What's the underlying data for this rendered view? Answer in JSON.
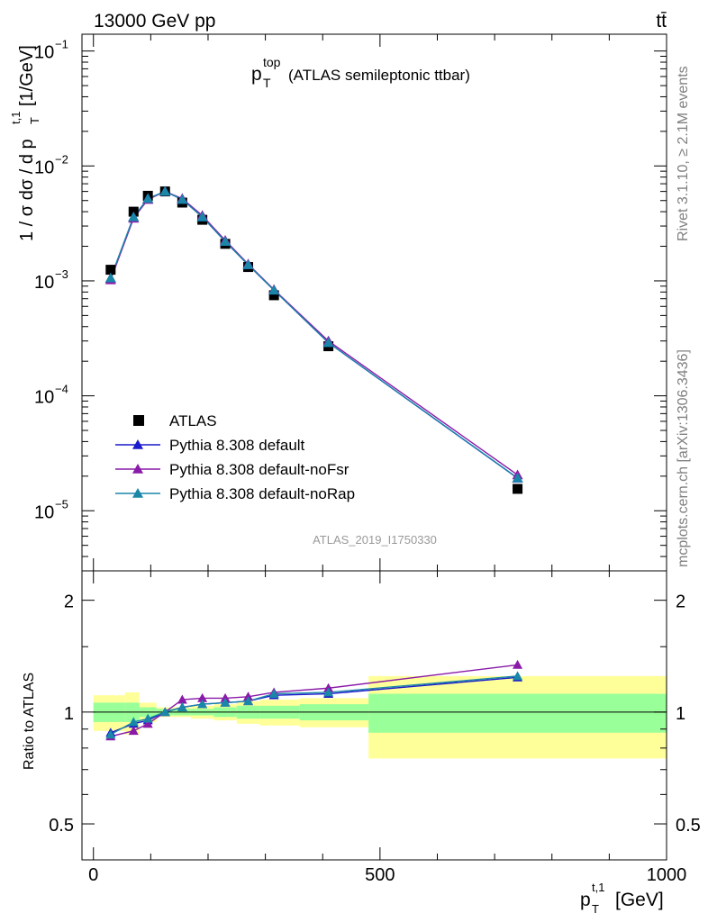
{
  "header": {
    "left": "13000 GeV pp",
    "right": "tt̄"
  },
  "side_labels": {
    "rivet": "Rivet 3.1.10, ≥ 2.1M events",
    "mcplots": "mcplots.cern.ch [arXiv:1306.3436]"
  },
  "analysis_id": "ATLAS_2019_I1750330",
  "chart_data": [
    {
      "type": "scatter",
      "panel": "main",
      "title_main": "p",
      "title_sup": "top",
      "title_sub": "T",
      "title_rest": "(ATLAS semileptonic ttbar)",
      "ylabel": "1 / σ dσ / d p",
      "ylabel_sup": "t,1",
      "ylabel_sub": "T",
      "ylabel_unit": "[1/GeV]",
      "yscale": "log",
      "ylim": [
        3e-06,
        0.14
      ],
      "xlim": [
        -20,
        1000
      ],
      "ytick_labels": [
        "10",
        "10",
        "10",
        "10",
        "10"
      ],
      "ytick_exps": [
        "−5",
        "−4",
        "−3",
        "−2",
        "−1"
      ],
      "ytick_values": [
        1e-05,
        0.0001,
        0.001,
        0.01,
        0.1
      ],
      "legend_position": "lower-left",
      "series": [
        {
          "name": "ATLAS",
          "marker": "square",
          "color": "#000000",
          "x": [
            30,
            70,
            95,
            125,
            155,
            190,
            230,
            270,
            315,
            410,
            740
          ],
          "y": [
            0.00125,
            0.004,
            0.0055,
            0.006,
            0.0048,
            0.0034,
            0.0021,
            0.00132,
            0.00075,
            0.00027,
            1.55e-05
          ]
        },
        {
          "name": "Pythia 8.308 default",
          "marker": "triangle",
          "color": "#1a1acc",
          "x": [
            30,
            70,
            95,
            125,
            155,
            190,
            230,
            270,
            315,
            410,
            740
          ],
          "y": [
            0.00105,
            0.0036,
            0.0052,
            0.006,
            0.0051,
            0.0036,
            0.0022,
            0.00138,
            0.00083,
            0.00029,
            1.92e-05
          ]
        },
        {
          "name": "Pythia 8.308 default-noFsr",
          "marker": "triangle",
          "color": "#8a1aa8",
          "x": [
            30,
            70,
            95,
            125,
            155,
            190,
            230,
            270,
            315,
            410,
            740
          ],
          "y": [
            0.00102,
            0.0035,
            0.0051,
            0.006,
            0.0052,
            0.0037,
            0.00225,
            0.0014,
            0.00084,
            0.0003,
            2.05e-05
          ]
        },
        {
          "name": "Pythia 8.308 default-noRap",
          "marker": "triangle",
          "color": "#1a86a8",
          "x": [
            30,
            70,
            95,
            125,
            155,
            190,
            230,
            270,
            315,
            410,
            740
          ],
          "y": [
            0.00106,
            0.0036,
            0.0052,
            0.006,
            0.0051,
            0.0036,
            0.0022,
            0.00138,
            0.00083,
            0.00029,
            1.93e-05
          ]
        }
      ]
    },
    {
      "type": "line",
      "panel": "ratio",
      "ylabel": "Ratio to ATLAS",
      "xlabel_main": "p",
      "xlabel_sup": "t,1",
      "xlabel_sub": "T",
      "xlabel_unit": "[GeV]",
      "xlim": [
        -20,
        1000
      ],
      "ylim": [
        0.4,
        2.4
      ],
      "xtick_labels": [
        "0",
        "500",
        "1000"
      ],
      "xtick_values": [
        0,
        500,
        1000
      ],
      "ytick_labels": [
        "0.5",
        "1",
        "2"
      ],
      "ytick_values": [
        0.5,
        1,
        2
      ],
      "bins": [
        {
          "lo": 0,
          "hi": 55,
          "stat": 0.06,
          "tot": 0.11
        },
        {
          "lo": 55,
          "hi": 80,
          "stat": 0.06,
          "tot": 0.13
        },
        {
          "lo": 80,
          "hi": 110,
          "stat": 0.03,
          "tot": 0.06
        },
        {
          "lo": 110,
          "hi": 140,
          "stat": 0.02,
          "tot": 0.03
        },
        {
          "lo": 140,
          "hi": 170,
          "stat": 0.02,
          "tot": 0.03
        },
        {
          "lo": 170,
          "hi": 210,
          "stat": 0.02,
          "tot": 0.04
        },
        {
          "lo": 210,
          "hi": 250,
          "stat": 0.03,
          "tot": 0.05
        },
        {
          "lo": 250,
          "hi": 290,
          "stat": 0.04,
          "tot": 0.07
        },
        {
          "lo": 290,
          "hi": 360,
          "stat": 0.04,
          "tot": 0.08
        },
        {
          "lo": 360,
          "hi": 480,
          "stat": 0.05,
          "tot": 0.09
        },
        {
          "lo": 480,
          "hi": 1000,
          "stat": 0.12,
          "tot": 0.25
        }
      ],
      "series": [
        {
          "name": "Pythia 8.308 default",
          "color": "#1a1acc",
          "x": [
            30,
            70,
            95,
            125,
            155,
            190,
            230,
            270,
            315,
            410,
            740
          ],
          "y": [
            0.88,
            0.93,
            0.95,
            1.0,
            1.03,
            1.05,
            1.06,
            1.07,
            1.11,
            1.12,
            1.24
          ]
        },
        {
          "name": "Pythia 8.308 default-noFsr",
          "color": "#8a1aa8",
          "x": [
            30,
            70,
            95,
            125,
            155,
            190,
            230,
            270,
            315,
            410,
            740
          ],
          "y": [
            0.86,
            0.89,
            0.93,
            1.0,
            1.08,
            1.09,
            1.09,
            1.1,
            1.13,
            1.16,
            1.34
          ]
        },
        {
          "name": "Pythia 8.308 default-noRap",
          "color": "#1a86a8",
          "x": [
            30,
            70,
            95,
            125,
            155,
            190,
            230,
            270,
            315,
            410,
            740
          ],
          "y": [
            0.87,
            0.94,
            0.96,
            1.0,
            1.03,
            1.05,
            1.06,
            1.07,
            1.12,
            1.13,
            1.25
          ]
        }
      ]
    }
  ],
  "colors": {
    "stat_band": "#99ff99",
    "total_band": "#ffff99",
    "axis": "#000000"
  }
}
